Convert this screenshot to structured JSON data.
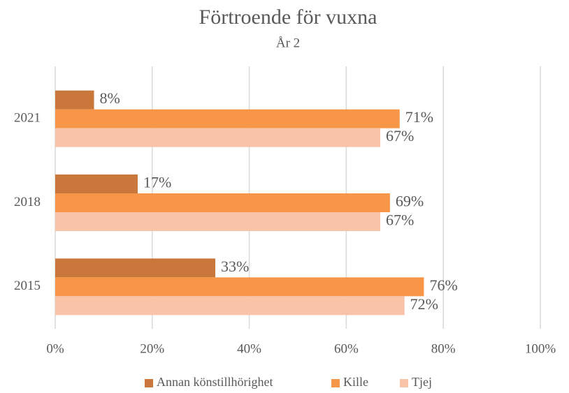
{
  "chart_data": {
    "type": "bar",
    "orientation": "horizontal",
    "title": "Förtroende för vuxna",
    "subtitle": "År 2",
    "categories": [
      "2015",
      "2018",
      "2021"
    ],
    "series": [
      {
        "name": "Annan könstillhörighet",
        "color": "#c9773a",
        "values": [
          33,
          17,
          8
        ],
        "value_labels": [
          "33%",
          "17%",
          "8%"
        ]
      },
      {
        "name": "Kille",
        "color": "#f79646",
        "values": [
          76,
          69,
          71
        ],
        "value_labels": [
          "76%",
          "69%",
          "71%"
        ]
      },
      {
        "name": "Tjej",
        "color": "#f9c3a8",
        "values": [
          72,
          67,
          67
        ],
        "value_labels": [
          "72%",
          "67%",
          "67%"
        ]
      }
    ],
    "xlim": [
      0,
      100
    ],
    "xticks": [
      {
        "value": 0,
        "label": "0%"
      },
      {
        "value": 20,
        "label": "20%"
      },
      {
        "value": 40,
        "label": "40%"
      },
      {
        "value": 60,
        "label": "60%"
      },
      {
        "value": 80,
        "label": "80%"
      },
      {
        "value": 100,
        "label": "100%"
      }
    ],
    "grid": true,
    "legend": "bottom"
  }
}
